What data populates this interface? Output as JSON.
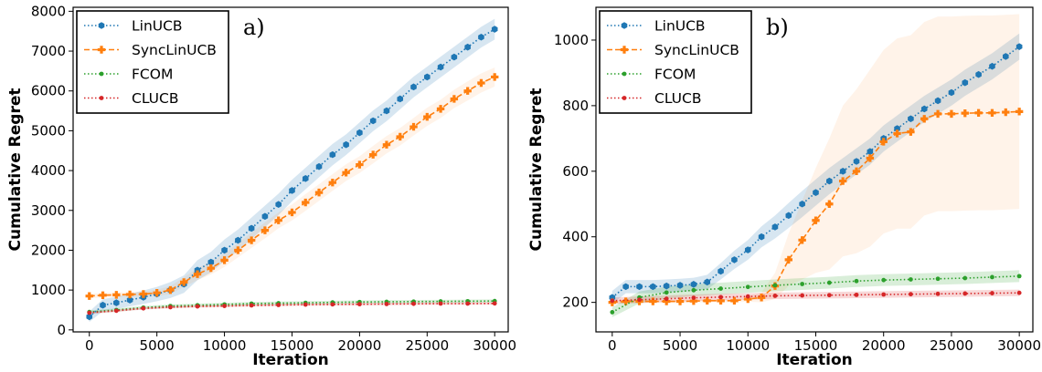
{
  "colors": {
    "LinUCB": "#1f77b4",
    "SyncLinUCB": "#ff7f0e",
    "FCOM": "#2ca02c",
    "CLUCB": "#d62728"
  },
  "chart_data": [
    {
      "type": "line",
      "panel_label": "a)",
      "xlabel": "Iteration",
      "ylabel": "Cumulative Regret",
      "xlim": [
        -1200,
        31000
      ],
      "ylim": [
        -50,
        8100
      ],
      "xticks": [
        0,
        5000,
        10000,
        15000,
        20000,
        25000,
        30000
      ],
      "yticks": [
        0,
        1000,
        2000,
        3000,
        4000,
        5000,
        6000,
        7000,
        8000
      ],
      "legend": [
        "LinUCB",
        "SyncLinUCB",
        "FCOM",
        "CLUCB"
      ],
      "legend_position": "top-left",
      "series": [
        {
          "name": "LinUCB",
          "style": "dotted",
          "marker": "hexagon",
          "x": [
            0,
            1000,
            2000,
            3000,
            4000,
            5000,
            6000,
            7000,
            8000,
            9000,
            10000,
            11000,
            12000,
            13000,
            14000,
            15000,
            16000,
            17000,
            18000,
            19000,
            20000,
            21000,
            22000,
            23000,
            24000,
            25000,
            26000,
            27000,
            28000,
            29000,
            30000
          ],
          "y": [
            330,
            620,
            680,
            750,
            820,
            900,
            1000,
            1150,
            1500,
            1700,
            2000,
            2250,
            2550,
            2850,
            3150,
            3500,
            3800,
            4100,
            4400,
            4650,
            4950,
            5250,
            5500,
            5800,
            6100,
            6350,
            6600,
            6850,
            7100,
            7350,
            7550
          ],
          "band": [
            130,
            150,
            150,
            160,
            170,
            180,
            200,
            220,
            250,
            260,
            270,
            270,
            270,
            270,
            270,
            270,
            270,
            270,
            270,
            260,
            260,
            260,
            260,
            260,
            260,
            260,
            260,
            260,
            260,
            260,
            260
          ]
        },
        {
          "name": "SyncLinUCB",
          "style": "dashed",
          "marker": "plus",
          "x": [
            0,
            1000,
            2000,
            3000,
            4000,
            5000,
            6000,
            7000,
            8000,
            9000,
            10000,
            11000,
            12000,
            13000,
            14000,
            15000,
            16000,
            17000,
            18000,
            19000,
            20000,
            21000,
            22000,
            23000,
            24000,
            25000,
            26000,
            27000,
            28000,
            29000,
            30000
          ],
          "y": [
            850,
            870,
            880,
            890,
            900,
            930,
            1000,
            1200,
            1400,
            1550,
            1750,
            2000,
            2250,
            2500,
            2750,
            2950,
            3200,
            3450,
            3700,
            3950,
            4150,
            4400,
            4650,
            4850,
            5100,
            5350,
            5550,
            5800,
            6000,
            6200,
            6350
          ],
          "band": [
            60,
            60,
            60,
            60,
            60,
            80,
            100,
            120,
            150,
            160,
            170,
            180,
            190,
            200,
            200,
            200,
            210,
            210,
            210,
            210,
            210,
            220,
            220,
            220,
            220,
            230,
            230,
            230,
            240,
            240,
            240
          ]
        },
        {
          "name": "FCOM",
          "style": "dotted",
          "marker": "dot",
          "x": [
            0,
            2000,
            4000,
            6000,
            8000,
            10000,
            12000,
            14000,
            16000,
            18000,
            20000,
            22000,
            24000,
            26000,
            28000,
            30000
          ],
          "y": [
            450,
            500,
            560,
            600,
            620,
            640,
            660,
            670,
            680,
            690,
            700,
            705,
            710,
            715,
            720,
            725
          ],
          "band": [
            40,
            40,
            40,
            40,
            40,
            40,
            40,
            40,
            40,
            40,
            40,
            40,
            40,
            40,
            40,
            40
          ]
        },
        {
          "name": "CLUCB",
          "style": "dotted",
          "marker": "dot",
          "x": [
            0,
            2000,
            4000,
            6000,
            8000,
            10000,
            12000,
            14000,
            16000,
            18000,
            20000,
            22000,
            24000,
            26000,
            28000,
            30000
          ],
          "y": [
            430,
            480,
            540,
            570,
            590,
            600,
            615,
            625,
            635,
            640,
            645,
            650,
            655,
            660,
            660,
            665
          ],
          "band": [
            30,
            30,
            30,
            30,
            30,
            30,
            30,
            30,
            30,
            30,
            30,
            30,
            30,
            30,
            30,
            30
          ]
        }
      ]
    },
    {
      "type": "line",
      "panel_label": "b)",
      "xlabel": "Iteration",
      "ylabel": "Cumulative Regret",
      "xlim": [
        -1200,
        31000
      ],
      "ylim": [
        110,
        1100
      ],
      "xticks": [
        0,
        5000,
        10000,
        15000,
        20000,
        25000,
        30000
      ],
      "yticks": [
        200,
        400,
        600,
        800,
        1000
      ],
      "legend": [
        "LinUCB",
        "SyncLinUCB",
        "FCOM",
        "CLUCB"
      ],
      "legend_position": "top-left",
      "series": [
        {
          "name": "LinUCB",
          "style": "dotted",
          "marker": "hexagon",
          "x": [
            0,
            1000,
            2000,
            3000,
            4000,
            5000,
            6000,
            7000,
            8000,
            9000,
            10000,
            11000,
            12000,
            13000,
            14000,
            15000,
            16000,
            17000,
            18000,
            19000,
            20000,
            21000,
            22000,
            23000,
            24000,
            25000,
            26000,
            27000,
            28000,
            29000,
            30000
          ],
          "y": [
            215,
            248,
            248,
            248,
            250,
            252,
            255,
            262,
            295,
            330,
            360,
            400,
            430,
            465,
            500,
            535,
            570,
            600,
            630,
            660,
            700,
            730,
            760,
            790,
            815,
            840,
            870,
            895,
            920,
            950,
            980
          ],
          "band": [
            20,
            20,
            20,
            20,
            20,
            20,
            20,
            22,
            25,
            28,
            30,
            32,
            35,
            38,
            40,
            40,
            40,
            40,
            40,
            40,
            40,
            40,
            40,
            40,
            40,
            40,
            40,
            40,
            40,
            40,
            40
          ]
        },
        {
          "name": "SyncLinUCB",
          "style": "dashed",
          "marker": "plus",
          "x": [
            0,
            1000,
            2000,
            3000,
            4000,
            5000,
            6000,
            7000,
            8000,
            9000,
            10000,
            11000,
            12000,
            13000,
            14000,
            15000,
            16000,
            17000,
            18000,
            19000,
            20000,
            21000,
            22000,
            23000,
            24000,
            25000,
            26000,
            27000,
            28000,
            29000,
            30000
          ],
          "y": [
            200,
            203,
            203,
            203,
            203,
            203,
            204,
            205,
            205,
            205,
            210,
            215,
            250,
            330,
            390,
            450,
            500,
            570,
            600,
            640,
            690,
            715,
            720,
            760,
            775,
            775,
            777,
            778,
            778,
            780,
            782
          ],
          "band": [
            5,
            5,
            5,
            5,
            5,
            5,
            5,
            5,
            5,
            5,
            8,
            15,
            40,
            80,
            120,
            160,
            200,
            230,
            250,
            270,
            280,
            290,
            295,
            295,
            297,
            297,
            297,
            297,
            297,
            297,
            297
          ]
        },
        {
          "name": "FCOM",
          "style": "dotted",
          "marker": "dot",
          "x": [
            0,
            2000,
            4000,
            6000,
            8000,
            10000,
            12000,
            14000,
            16000,
            18000,
            20000,
            22000,
            24000,
            26000,
            28000,
            30000
          ],
          "y": [
            170,
            215,
            230,
            237,
            242,
            247,
            252,
            256,
            260,
            265,
            268,
            270,
            272,
            274,
            277,
            280
          ],
          "band": [
            15,
            18,
            18,
            18,
            18,
            18,
            18,
            18,
            18,
            18,
            18,
            18,
            18,
            18,
            18,
            18
          ]
        },
        {
          "name": "CLUCB",
          "style": "dotted",
          "marker": "dot",
          "x": [
            0,
            2000,
            4000,
            6000,
            8000,
            10000,
            12000,
            14000,
            16000,
            18000,
            20000,
            22000,
            24000,
            26000,
            28000,
            30000
          ],
          "y": [
            205,
            208,
            211,
            214,
            216,
            218,
            220,
            221,
            222,
            223,
            224,
            225,
            226,
            227,
            228,
            229
          ],
          "band": [
            10,
            10,
            10,
            10,
            10,
            10,
            10,
            10,
            10,
            10,
            10,
            10,
            10,
            10,
            10,
            10
          ]
        }
      ]
    }
  ]
}
